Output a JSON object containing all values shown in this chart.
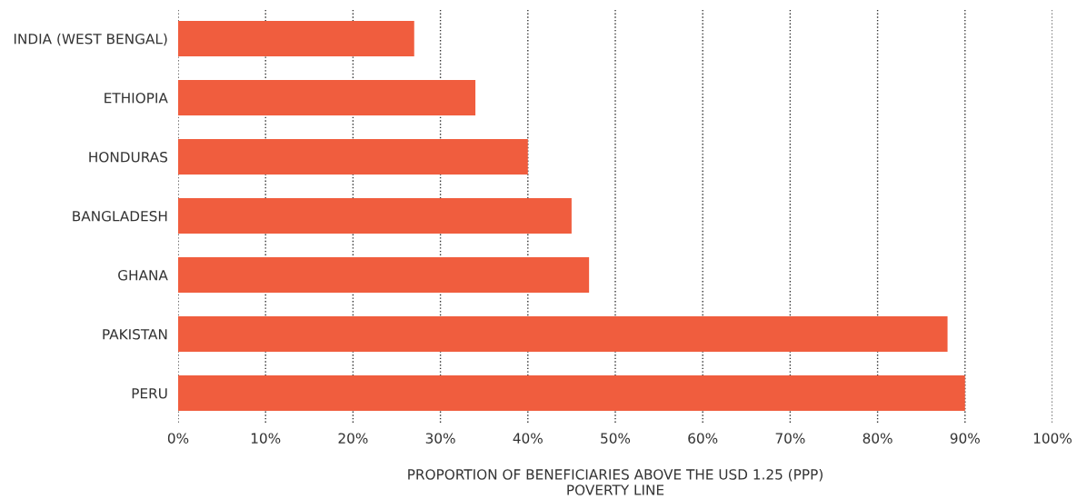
{
  "chart_data": {
    "type": "bar",
    "orientation": "horizontal",
    "categories": [
      "INDIA (WEST BENGAL)",
      "ETHIOPIA",
      "HONDURAS",
      "BANGLADESH",
      "GHANA",
      "PAKISTAN",
      "PERU"
    ],
    "values": [
      27,
      34,
      40,
      45,
      47,
      88,
      90
    ],
    "color": "#f05d3e",
    "xlim": [
      0,
      100
    ],
    "xticks": [
      {
        "value": 0,
        "label": "0%"
      },
      {
        "value": 10,
        "label": "10%"
      },
      {
        "value": 20,
        "label": "20%"
      },
      {
        "value": 30,
        "label": "30%"
      },
      {
        "value": 40,
        "label": "40%"
      },
      {
        "value": 50,
        "label": "50%"
      },
      {
        "value": 60,
        "label": "60%"
      },
      {
        "value": 70,
        "label": "70%"
      },
      {
        "value": 80,
        "label": "80%"
      },
      {
        "value": 90,
        "label": "90%"
      },
      {
        "value": 100,
        "label": "100%"
      }
    ],
    "xlabel": "PROPORTION OF BENEFICIARIES ABOVE THE USD 1.25 (PPP)\nPOVERTY LINE",
    "grid": "x"
  }
}
